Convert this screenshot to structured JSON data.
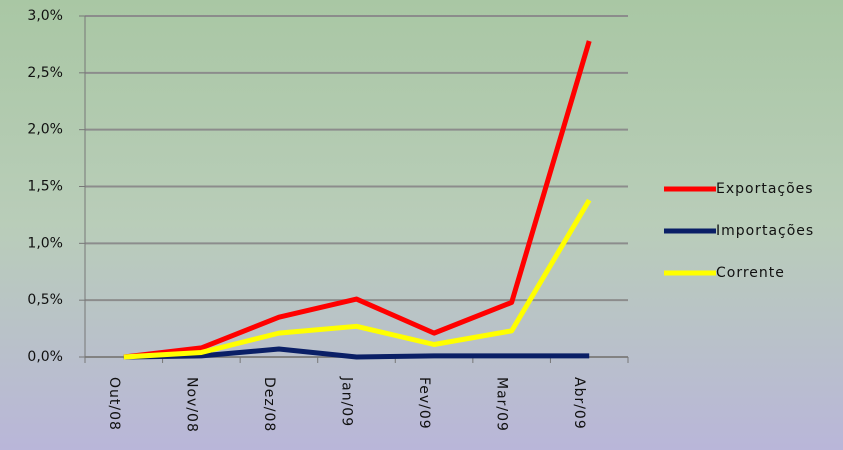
{
  "chart_data": {
    "type": "line",
    "categories": [
      "Out/08",
      "Nov/08",
      "Dez/08",
      "Jan/09",
      "Fev/09",
      "Mar/09",
      "Abr/09"
    ],
    "series": [
      {
        "name": "Exportações",
        "color": "#ff0000",
        "values": [
          0.0,
          0.08,
          0.35,
          0.51,
          0.21,
          0.48,
          2.78
        ]
      },
      {
        "name": "Importações",
        "color": "#0a1f66",
        "values": [
          0.0,
          0.01,
          0.07,
          0.0,
          0.01,
          0.01,
          0.01
        ]
      },
      {
        "name": "Corrente",
        "color": "#ffff00",
        "values": [
          0.0,
          0.04,
          0.21,
          0.27,
          0.11,
          0.23,
          1.38
        ]
      }
    ],
    "ylim": [
      0,
      3
    ],
    "yticks": [
      {
        "value": 0,
        "label": "0,0%"
      },
      {
        "value": 0.5,
        "label": "0,5%"
      },
      {
        "value": 1,
        "label": "1,0%"
      },
      {
        "value": 1.5,
        "label": "1,5%"
      },
      {
        "value": 2,
        "label": "2,0%"
      },
      {
        "value": 2.5,
        "label": "2,5%"
      },
      {
        "value": 3,
        "label": "3,0%"
      }
    ],
    "grid": true,
    "legend": "right"
  }
}
